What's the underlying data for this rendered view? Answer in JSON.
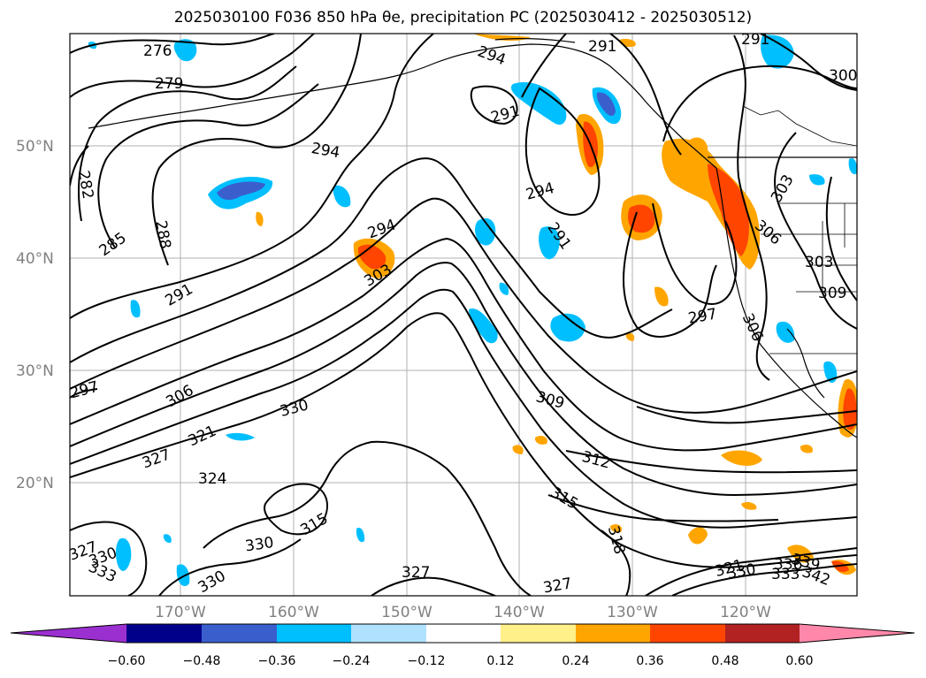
{
  "title": "2025030100 F036 850 hPa θe, precipitation PC (2025030412 - 2025030512)",
  "map": {
    "lat_labels": [
      "50°N",
      "40°N",
      "30°N",
      "20°N"
    ],
    "lon_labels": [
      "170°W",
      "160°W",
      "150°W",
      "140°W",
      "130°W",
      "120°W"
    ],
    "contour_labels": [
      "276",
      "279",
      "282",
      "285",
      "288",
      "291",
      "291",
      "291",
      "291",
      "291",
      "294",
      "294",
      "294",
      "294",
      "297",
      "297",
      "300",
      "303",
      "303",
      "303",
      "306",
      "306",
      "306",
      "309",
      "309",
      "312",
      "315",
      "315",
      "318",
      "321",
      "321",
      "324",
      "327",
      "327",
      "327",
      "327",
      "330",
      "330",
      "330",
      "330",
      "330",
      "333",
      "333",
      "336",
      "339",
      "342"
    ]
  },
  "colorbar": {
    "tick_labels": [
      "−0.60",
      "−0.48",
      "−0.36",
      "−0.24",
      "−0.12",
      "0.12",
      "0.24",
      "0.36",
      "0.48",
      "0.60"
    ],
    "colors": [
      "#9b30d0",
      "#00008b",
      "#3a5fcd",
      "#00bfff",
      "#b0e2ff",
      "#ffffff",
      "#fff08a",
      "#ffa500",
      "#ff4500",
      "#b22222",
      "#ff88aa"
    ]
  }
}
